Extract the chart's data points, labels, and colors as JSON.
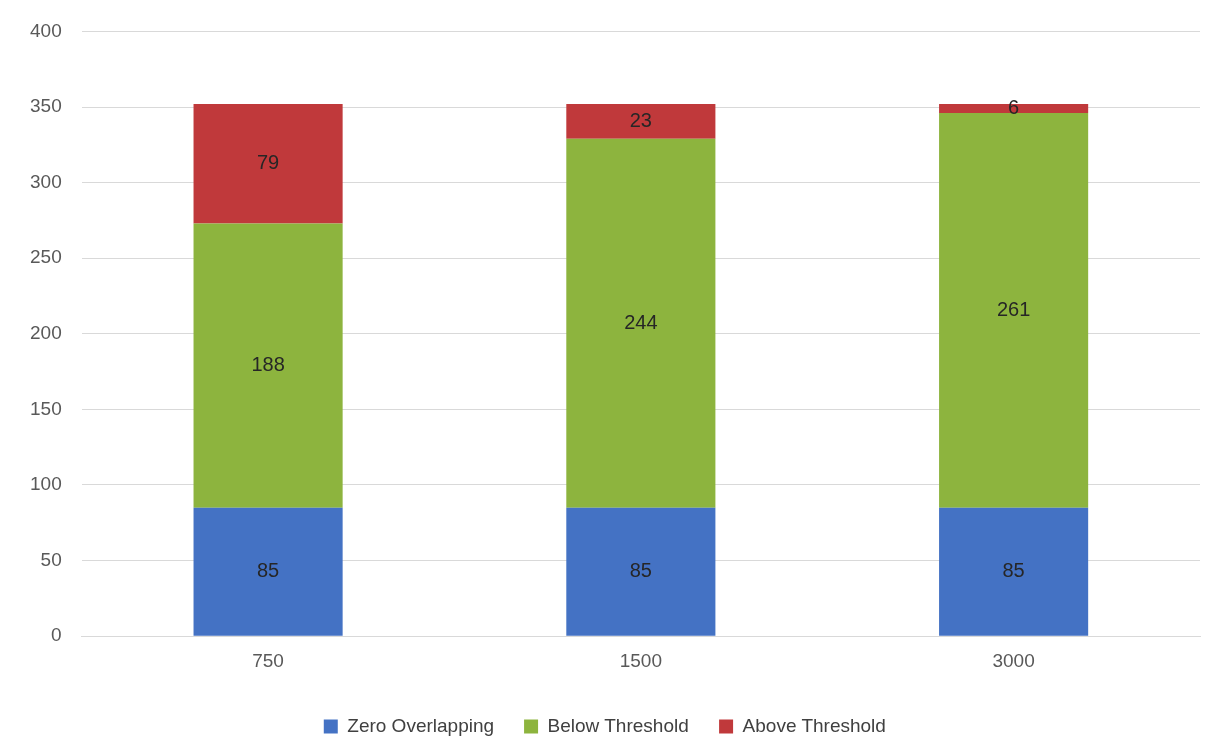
{
  "chart_data": {
    "type": "bar",
    "stacked": true,
    "categories": [
      "750",
      "1500",
      "3000"
    ],
    "series": [
      {
        "name": "Zero Overlapping",
        "color": "#4472c4",
        "values": [
          85,
          85,
          85
        ]
      },
      {
        "name": "Below Threshold",
        "color": "#8db43e",
        "values": [
          188,
          244,
          261
        ]
      },
      {
        "name": "Above Threshold",
        "color": "#c0393b",
        "values": [
          79,
          23,
          6
        ]
      }
    ],
    "ylim": [
      0,
      400
    ],
    "yticks": [
      0,
      50,
      100,
      150,
      200,
      250,
      300,
      350,
      400
    ],
    "grid": "y",
    "legend": "bottom",
    "data_labels": true
  }
}
